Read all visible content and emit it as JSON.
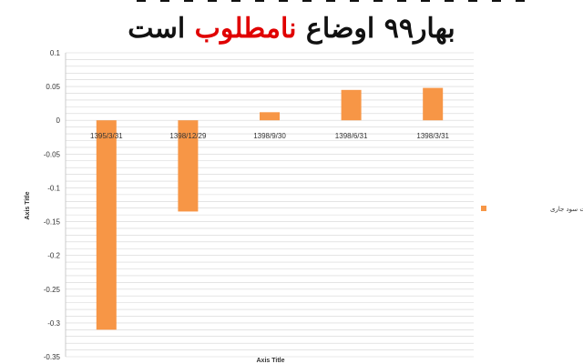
{
  "header": {
    "title_main": "بهار۹۹ اوضاع ",
    "title_red": "نامطلوب",
    "title_end": " است"
  },
  "chart_data": {
    "type": "bar",
    "categories": [
      "1395/3/31",
      "1398/12/29",
      "1398/9/30",
      "1398/6/31",
      "1398/3/31"
    ],
    "series": [
      {
        "name": "نسبت سود جاری",
        "values": [
          -0.31,
          -0.135,
          0.012,
          0.045,
          0.048
        ],
        "color": "#f79646"
      }
    ],
    "ylim": [
      -0.35,
      0.1
    ],
    "yticks": [
      0.1,
      0.05,
      0,
      -0.05,
      -0.1,
      -0.15,
      -0.2,
      -0.25,
      -0.3,
      -0.35
    ],
    "ytick_labels": [
      "0.1",
      "0.05",
      "0",
      "-0.05",
      "-0.1",
      "-0.15",
      "-0.2",
      "-0.25",
      "-0.3",
      "-0.35"
    ],
    "xlabel": "Axis Title",
    "ylabel": "Axis Title",
    "grid": true,
    "legend_position": "right"
  }
}
